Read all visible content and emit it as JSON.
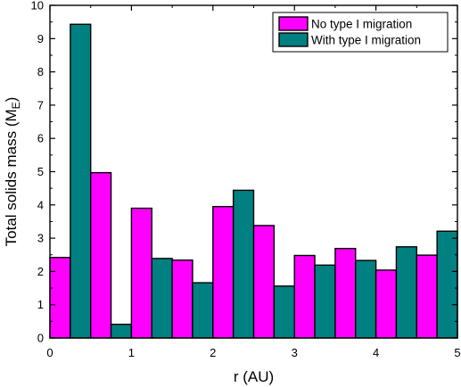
{
  "chart_data": {
    "type": "bar",
    "xlabel": "r (AU)",
    "ylabel_main": "Total solids mass (M",
    "ylabel_sub": "E",
    "ylabel_end": ")",
    "xlim": [
      0,
      5
    ],
    "ylim": [
      0,
      10
    ],
    "x_ticks": [
      0,
      1,
      2,
      3,
      4,
      5
    ],
    "y_ticks": [
      0,
      1,
      2,
      3,
      4,
      5,
      6,
      7,
      8,
      9,
      10
    ],
    "x_tick_labels": [
      "0",
      "1",
      "2",
      "3",
      "4",
      "5"
    ],
    "y_tick_labels": [
      "0",
      "1",
      "2",
      "3",
      "4",
      "5",
      "6",
      "7",
      "8",
      "9",
      "10"
    ],
    "bin_width": 0.5,
    "bin_starts": [
      0,
      0.5,
      1.0,
      1.5,
      2.0,
      2.5,
      3.0,
      3.5,
      4.0,
      4.5
    ],
    "grid": false,
    "legend_position": "top-right",
    "series": [
      {
        "name": "No type I migration",
        "color": "#ff00ff",
        "values": [
          2.42,
          4.97,
          3.9,
          2.34,
          3.95,
          3.38,
          2.48,
          2.69,
          2.04,
          2.49
        ]
      },
      {
        "name": "With type I migration",
        "color": "#008080",
        "values": [
          9.43,
          0.41,
          2.39,
          1.66,
          4.44,
          1.56,
          2.19,
          2.33,
          2.74,
          3.21
        ]
      }
    ]
  }
}
